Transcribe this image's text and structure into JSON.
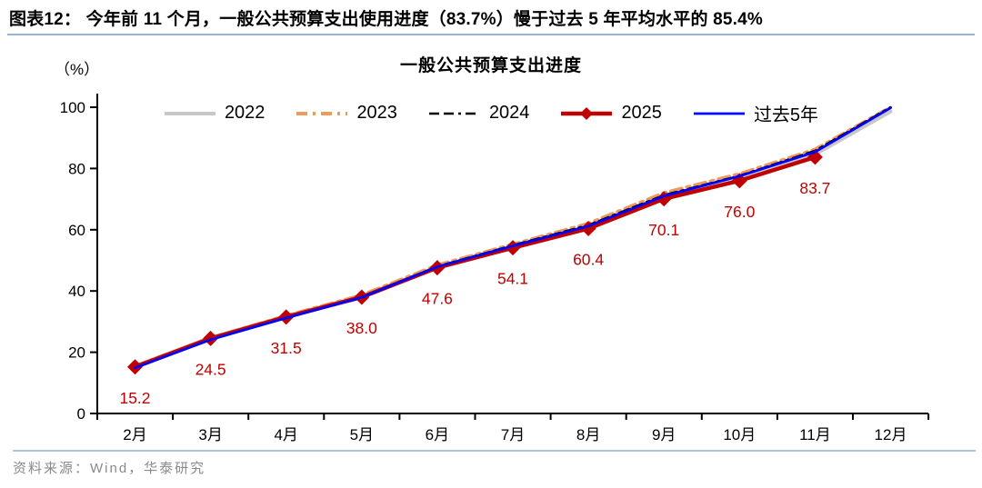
{
  "header": {
    "caption": "图表12：  今年前 11 个月，一般公共预算支出使用进度（83.7%）慢于过去 5 年平均水平的 85.4%"
  },
  "footer": {
    "source": "资料来源：Wind，华泰研究"
  },
  "chart_data": {
    "type": "line",
    "title": "一般公共预算支出进度",
    "y_unit": "（%）",
    "xlabel": "",
    "ylabel": "",
    "categories": [
      "2月",
      "3月",
      "4月",
      "5月",
      "6月",
      "7月",
      "8月",
      "9月",
      "10月",
      "11月",
      "12月"
    ],
    "ylim": [
      0,
      100
    ],
    "y_ticks": [
      0,
      20,
      40,
      60,
      80,
      100
    ],
    "grid": false,
    "legend_position": "top",
    "label_color": "#C00000",
    "series": [
      {
        "name": "2022",
        "color": "#C8C8C8",
        "style": "solid",
        "width": 4,
        "approx": true,
        "values": [
          15.5,
          24.8,
          31.8,
          38.3,
          47.7,
          54.3,
          60.8,
          70.6,
          76.8,
          84.6,
          98.6
        ]
      },
      {
        "name": "2023",
        "color": "#ED9B5A",
        "style": "dashdot",
        "width": 4,
        "approx": true,
        "values": [
          15.4,
          24.6,
          31.9,
          38.6,
          48.4,
          55.2,
          62.0,
          72.0,
          78.2,
          86.2,
          100.0
        ]
      },
      {
        "name": "2024",
        "color": "#000000",
        "style": "dashed",
        "width": 2.5,
        "approx": true,
        "values": [
          15.1,
          24.2,
          31.4,
          38.1,
          48.0,
          54.9,
          61.5,
          71.3,
          77.6,
          85.8,
          100.0
        ]
      },
      {
        "name": "2025",
        "color": "#C00000",
        "style": "solid",
        "width": 4.5,
        "marker": "diamond",
        "labeled": true,
        "values": [
          15.2,
          24.5,
          31.5,
          38.0,
          47.6,
          54.1,
          60.4,
          70.1,
          76.0,
          83.7,
          null
        ]
      },
      {
        "name": "过去5年",
        "color": "#0000FF",
        "style": "solid",
        "width": 2.8,
        "approx": true,
        "values": [
          14.9,
          24.1,
          31.2,
          37.9,
          47.9,
          54.7,
          61.2,
          71.0,
          77.5,
          85.4,
          99.8
        ]
      }
    ]
  }
}
